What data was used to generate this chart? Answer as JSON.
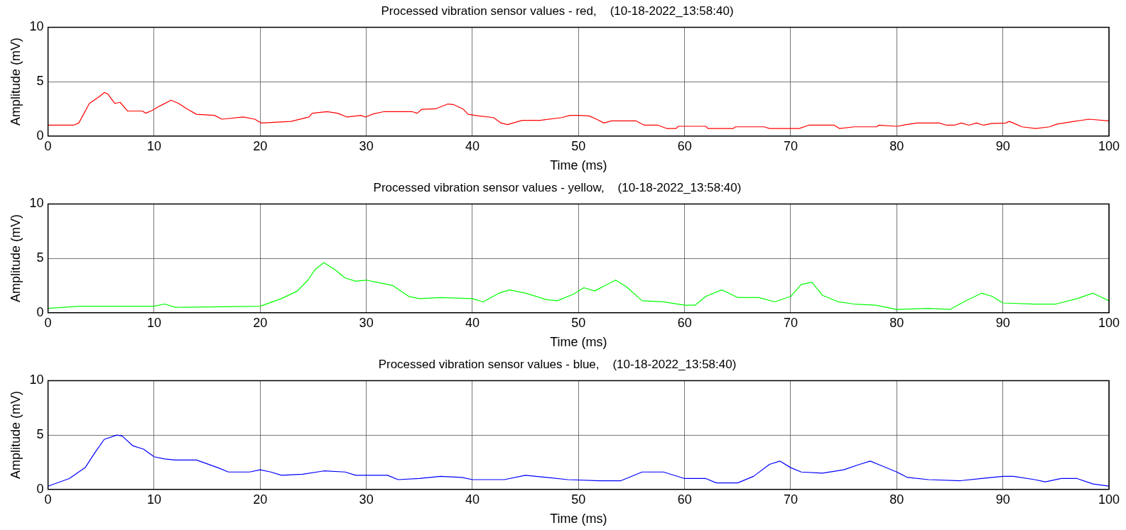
{
  "chart_data": [
    {
      "type": "line",
      "title": "Processed vibration sensor values - red,    (10-18-2022_13:58:40)",
      "xlabel": "Time (ms)",
      "ylabel": "Amplitude (mV)",
      "xlim": [
        0,
        100
      ],
      "ylim": [
        0,
        10
      ],
      "xticks": [
        0,
        10,
        20,
        30,
        40,
        50,
        60,
        70,
        80,
        90,
        100
      ],
      "yticks": [
        0,
        5,
        10
      ],
      "grid": true,
      "x": [
        0,
        2.4,
        2.9,
        3.9,
        4.8,
        5.3,
        5.6,
        6.3,
        6.8,
        7.5,
        8.9,
        9.2,
        9.8,
        10.6,
        11.6,
        12.3,
        13.1,
        14.0,
        15.7,
        16.4,
        18.4,
        19.5,
        20.1,
        22.9,
        24.6,
        24.9,
        26.3,
        27.3,
        28.2,
        29.5,
        29.9,
        30.7,
        31.7,
        34.3,
        34.8,
        35.2,
        36.5,
        37.7,
        38.2,
        39.1,
        39.6,
        40.6,
        42.0,
        42.7,
        43.3,
        44.7,
        46.4,
        48.4,
        49.2,
        50,
        51.0,
        51.7,
        52.4,
        53.1,
        55.4,
        56.2,
        57.5,
        58.3,
        59.2,
        59.4,
        62,
        62.2,
        64.6,
        64.8,
        67.5,
        68.0,
        70.8,
        71.7,
        74.1,
        74.6,
        76.0,
        78.1,
        78.3,
        80,
        80.9,
        81.9,
        84,
        84.7,
        85.4,
        86.1,
        86.8,
        87.5,
        88.2,
        88.9,
        90.3,
        90.6,
        91.1,
        91.8,
        93.1,
        94.4,
        95.1,
        96.7,
        98.1,
        100
      ],
      "series": [
        {
          "color": "#ff0000",
          "values": [
            1.0,
            1.0,
            1.2,
            3.0,
            3.6,
            4.0,
            3.9,
            3.0,
            3.1,
            2.3,
            2.3,
            2.1,
            2.35,
            2.8,
            3.3,
            3.0,
            2.5,
            2.0,
            1.9,
            1.55,
            1.75,
            1.55,
            1.2,
            1.35,
            1.75,
            2.1,
            2.25,
            2.1,
            1.75,
            1.9,
            1.75,
            2.05,
            2.25,
            2.25,
            2.1,
            2.45,
            2.5,
            2.95,
            2.9,
            2.5,
            2.0,
            1.85,
            1.7,
            1.2,
            1.05,
            1.45,
            1.45,
            1.7,
            1.9,
            1.9,
            1.85,
            1.55,
            1.2,
            1.4,
            1.4,
            1.0,
            1.0,
            0.7,
            0.7,
            0.9,
            0.9,
            0.7,
            0.7,
            0.85,
            0.85,
            0.7,
            0.7,
            1.0,
            1.0,
            0.7,
            0.85,
            0.85,
            1.0,
            0.9,
            1.05,
            1.2,
            1.2,
            1.0,
            1.0,
            1.2,
            1.0,
            1.2,
            1.0,
            1.15,
            1.2,
            1.35,
            1.15,
            0.85,
            0.7,
            0.85,
            1.1,
            1.35,
            1.55,
            1.4
          ]
        }
      ]
    },
    {
      "type": "line",
      "title": "Processed vibration sensor values - yellow,    (10-18-2022_13:58:40)",
      "xlabel": "Time (ms)",
      "ylabel": "Amplitude (mV)",
      "xlim": [
        0,
        100
      ],
      "ylim": [
        0,
        10
      ],
      "xticks": [
        0,
        10,
        20,
        30,
        40,
        50,
        60,
        70,
        80,
        90,
        100
      ],
      "yticks": [
        0,
        5,
        10
      ],
      "grid": true,
      "x": [
        0,
        3,
        10,
        11,
        12,
        20,
        22,
        23.5,
        24.5,
        25.2,
        26,
        27,
        28,
        29,
        30,
        31,
        32.5,
        34,
        35,
        37,
        40,
        41,
        42.5,
        43.5,
        45,
        47,
        48,
        49.5,
        50.5,
        51.5,
        52.5,
        53.5,
        54.5,
        56,
        58,
        60,
        61,
        62,
        63.5,
        65,
        67,
        68.5,
        70,
        71,
        72,
        73,
        74.5,
        76,
        78,
        80,
        83,
        85,
        86.5,
        88,
        89,
        90,
        93,
        95,
        97,
        98.5,
        100
      ],
      "series": [
        {
          "color": "#00ff00",
          "values": [
            0.4,
            0.6,
            0.6,
            0.8,
            0.5,
            0.6,
            1.3,
            2.0,
            3.0,
            4.0,
            4.6,
            4.0,
            3.2,
            2.9,
            3.0,
            2.8,
            2.5,
            1.5,
            1.3,
            1.4,
            1.3,
            1.0,
            1.8,
            2.1,
            1.8,
            1.2,
            1.1,
            1.7,
            2.3,
            2.0,
            2.5,
            3.0,
            2.4,
            1.1,
            1.0,
            0.7,
            0.7,
            1.5,
            2.1,
            1.4,
            1.4,
            1.0,
            1.5,
            2.6,
            2.8,
            1.6,
            1.0,
            0.8,
            0.7,
            0.3,
            0.4,
            0.3,
            1.1,
            1.8,
            1.5,
            0.9,
            0.8,
            0.8,
            1.3,
            1.8,
            1.1
          ]
        }
      ]
    },
    {
      "type": "line",
      "title": "Processed vibration sensor values - blue,    (10-18-2022_13:58:40)",
      "xlabel": "Time (ms)",
      "ylabel": "Amplitude (mV)",
      "xlim": [
        0,
        100
      ],
      "ylim": [
        0,
        10
      ],
      "xticks": [
        0,
        10,
        20,
        30,
        40,
        50,
        60,
        70,
        80,
        90,
        100
      ],
      "yticks": [
        0,
        5,
        10
      ],
      "grid": true,
      "x": [
        0,
        2,
        3.5,
        4.5,
        5.3,
        6.5,
        7,
        8,
        9,
        10,
        11,
        12,
        14,
        16,
        17,
        19,
        20,
        21,
        22,
        24,
        26,
        28,
        29,
        32,
        33,
        35,
        37,
        39,
        40,
        43,
        45,
        47,
        49,
        52,
        54,
        56,
        58,
        60,
        62,
        63,
        65,
        66.5,
        68,
        69,
        70,
        71,
        73,
        75,
        76.5,
        77.5,
        78.5,
        80,
        81,
        83,
        86,
        88,
        90,
        91,
        93,
        94,
        95.5,
        97,
        98.5,
        100
      ],
      "series": [
        {
          "color": "#0000ff",
          "values": [
            0.3,
            1.0,
            2.0,
            3.5,
            4.6,
            5.0,
            4.9,
            4.0,
            3.7,
            3.0,
            2.8,
            2.7,
            2.7,
            2.0,
            1.6,
            1.6,
            1.8,
            1.6,
            1.3,
            1.4,
            1.7,
            1.6,
            1.3,
            1.3,
            0.9,
            1.0,
            1.2,
            1.1,
            0.9,
            0.9,
            1.3,
            1.1,
            0.9,
            0.8,
            0.8,
            1.6,
            1.6,
            1.0,
            1.0,
            0.6,
            0.6,
            1.2,
            2.3,
            2.6,
            2.0,
            1.6,
            1.5,
            1.8,
            2.3,
            2.6,
            2.2,
            1.6,
            1.1,
            0.9,
            0.8,
            1.0,
            1.2,
            1.2,
            0.9,
            0.7,
            1.0,
            1.0,
            0.5,
            0.3
          ]
        }
      ]
    }
  ]
}
